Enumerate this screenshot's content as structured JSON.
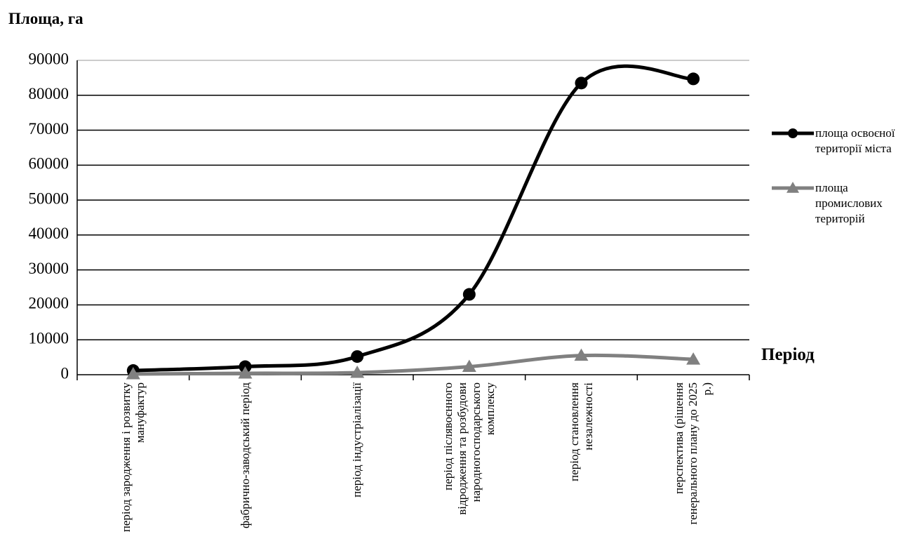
{
  "chart_data": {
    "type": "line",
    "title": "Площа, га",
    "x_label": "Період",
    "categories": [
      "період зародження і розвитку мануфактур",
      "фабрично-заводський період",
      "період індустріалізації",
      "період післявоєнного відродження та розбудови народногосподарського комплексу",
      "період становлення незалежності",
      "перспектива (рішення генерального плану до 2025 р.)"
    ],
    "series": [
      {
        "name": "площа освоєної території міста",
        "color": "#000000",
        "marker": "circle",
        "values": [
          1200,
          2300,
          5200,
          23000,
          83500,
          84700
        ]
      },
      {
        "name": "площа промислових територій",
        "color": "#808080",
        "marker": "triangle",
        "values": [
          200,
          400,
          600,
          2300,
          5500,
          4400
        ]
      }
    ],
    "ylim": [
      0,
      90000
    ],
    "yticks": [
      0,
      10000,
      20000,
      30000,
      40000,
      50000,
      60000,
      70000,
      80000,
      90000
    ],
    "grid": true,
    "smooth": true,
    "legend": "right"
  }
}
